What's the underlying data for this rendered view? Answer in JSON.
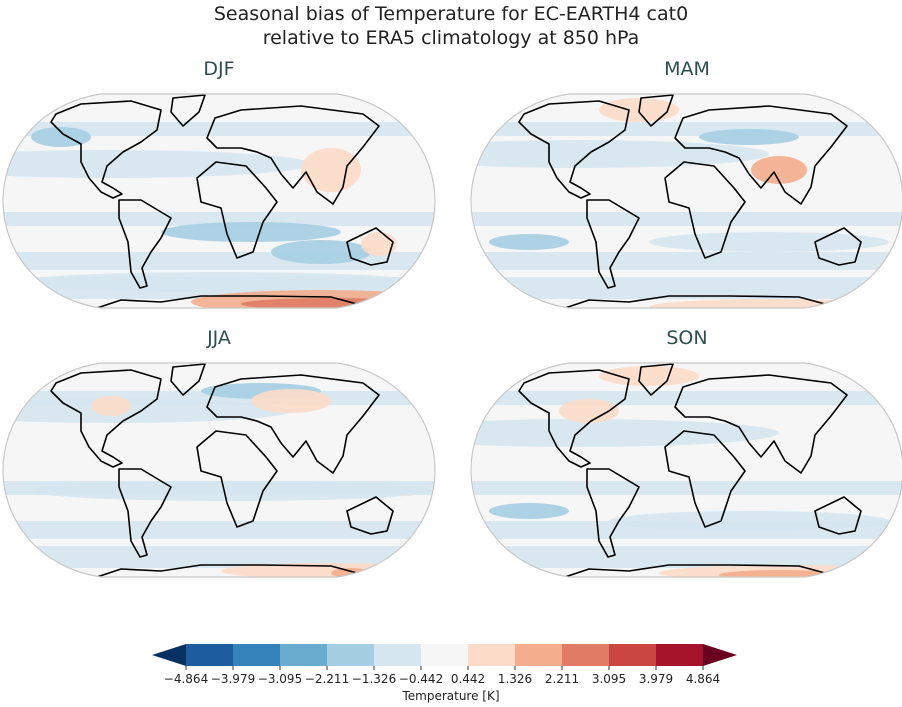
{
  "title": {
    "line1": "Seasonal bias of Temperature for EC-EARTH4 cat0",
    "line2": "relative to ERA5 climatology at 850 hPa"
  },
  "panels": [
    {
      "title": "DJF"
    },
    {
      "title": "MAM"
    },
    {
      "title": "JJA"
    },
    {
      "title": "SON"
    }
  ],
  "colorbar": {
    "label": "Temperature [K]",
    "ticks": [
      "−4.864",
      "−3.979",
      "−3.095",
      "−2.211",
      "−1.326",
      "−0.442",
      "0.442",
      "1.326",
      "2.211",
      "3.095",
      "3.979",
      "4.864"
    ],
    "colors": [
      "#1d5c9f",
      "#3683bb",
      "#6aacd0",
      "#a6cee3",
      "#d5e6f0",
      "#f6f6f6",
      "#fcdbc8",
      "#f4ad8d",
      "#e07c66",
      "#c94643",
      "#a5142a"
    ],
    "under_color": "#083163",
    "over_color": "#6a0020",
    "extend": "both"
  }
}
